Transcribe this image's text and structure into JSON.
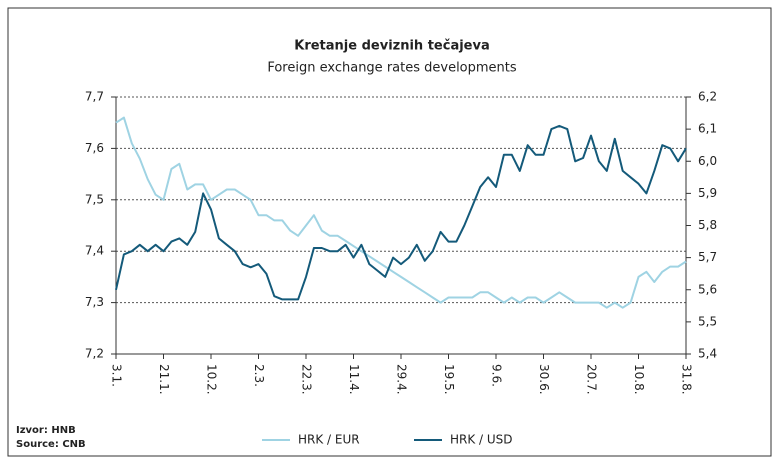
{
  "chart_data": {
    "type": "line",
    "title": "Kretanje deviznih tečajeva",
    "subtitle": "Foreign exchange rates developments",
    "source": [
      "Izvor: HNB",
      "Source: CNB"
    ],
    "categories": [
      "3.1.",
      null,
      null,
      null,
      null,
      null,
      "21.1.",
      null,
      null,
      null,
      null,
      null,
      "10.2.",
      null,
      null,
      null,
      null,
      null,
      "2.3.",
      null,
      null,
      null,
      null,
      null,
      "22.3.",
      null,
      null,
      null,
      null,
      null,
      "11.4.",
      null,
      null,
      null,
      null,
      null,
      "29.4.",
      null,
      null,
      null,
      null,
      null,
      "19.5.",
      null,
      null,
      null,
      null,
      null,
      "9.6.",
      null,
      null,
      null,
      null,
      null,
      "30.6.",
      null,
      null,
      null,
      null,
      null,
      "20.7.",
      null,
      null,
      null,
      null,
      null,
      "10.8.",
      null,
      null,
      null,
      null,
      null,
      "31.8."
    ],
    "ylim": [
      7.2,
      7.7
    ],
    "yticks": [
      {
        "value": 7.2,
        "label": "7,2"
      },
      {
        "value": 7.3,
        "label": "7,3"
      },
      {
        "value": 7.4,
        "label": "7,4"
      },
      {
        "value": 7.5,
        "label": "7,5"
      },
      {
        "value": 7.6,
        "label": "7,6"
      },
      {
        "value": 7.7,
        "label": "7,7"
      }
    ],
    "y2lim": [
      5.4,
      6.2
    ],
    "y2ticks": [
      {
        "value": 5.4,
        "label": "5,4"
      },
      {
        "value": 5.5,
        "label": "5,5"
      },
      {
        "value": 5.6,
        "label": "5,6"
      },
      {
        "value": 5.7,
        "label": "5,7"
      },
      {
        "value": 5.8,
        "label": "5,8"
      },
      {
        "value": 5.9,
        "label": "5,9"
      },
      {
        "value": 6.0,
        "label": "6,0"
      },
      {
        "value": 6.1,
        "label": "6,1"
      },
      {
        "value": 6.2,
        "label": "6,2"
      }
    ],
    "grid": true,
    "legend": "bottom",
    "series": [
      {
        "name": "HRK / EUR",
        "color": "#9fd3e3",
        "axis": "y",
        "values": [
          7.65,
          7.66,
          7.61,
          7.58,
          7.54,
          7.51,
          7.5,
          7.56,
          7.57,
          7.52,
          7.53,
          7.53,
          7.5,
          7.51,
          7.52,
          7.52,
          7.51,
          7.5,
          7.47,
          7.47,
          7.46,
          7.46,
          7.44,
          7.43,
          7.45,
          7.47,
          7.44,
          7.43,
          7.43,
          7.42,
          7.41,
          7.4,
          7.39,
          7.38,
          7.37,
          7.36,
          7.35,
          7.34,
          7.33,
          7.32,
          7.31,
          7.3,
          7.31,
          7.31,
          7.31,
          7.31,
          7.32,
          7.32,
          7.31,
          7.3,
          7.31,
          7.3,
          7.31,
          7.31,
          7.3,
          7.31,
          7.32,
          7.31,
          7.3,
          7.3,
          7.3,
          7.3,
          7.29,
          7.3,
          7.29,
          7.3,
          7.35,
          7.36,
          7.34,
          7.36,
          7.37,
          7.37,
          7.38
        ]
      },
      {
        "name": "HRK / USD",
        "color": "#145a7a",
        "axis": "y2",
        "values": [
          5.6,
          5.71,
          5.72,
          5.74,
          5.72,
          5.74,
          5.72,
          5.75,
          5.76,
          5.74,
          5.78,
          5.9,
          5.85,
          5.76,
          5.74,
          5.72,
          5.68,
          5.67,
          5.68,
          5.65,
          5.58,
          5.57,
          5.57,
          5.57,
          5.64,
          5.73,
          5.73,
          5.72,
          5.72,
          5.74,
          5.7,
          5.74,
          5.68,
          5.66,
          5.64,
          5.7,
          5.68,
          5.7,
          5.74,
          5.69,
          5.72,
          5.78,
          5.75,
          5.75,
          5.8,
          5.86,
          5.92,
          5.95,
          5.92,
          6.02,
          6.02,
          5.97,
          6.05,
          6.02,
          6.02,
          6.1,
          6.11,
          6.1,
          6.0,
          6.01,
          6.08,
          6.0,
          5.97,
          6.07,
          5.97,
          5.95,
          5.93,
          5.9,
          5.97,
          6.05,
          6.04,
          6.0,
          6.04
        ]
      }
    ]
  }
}
